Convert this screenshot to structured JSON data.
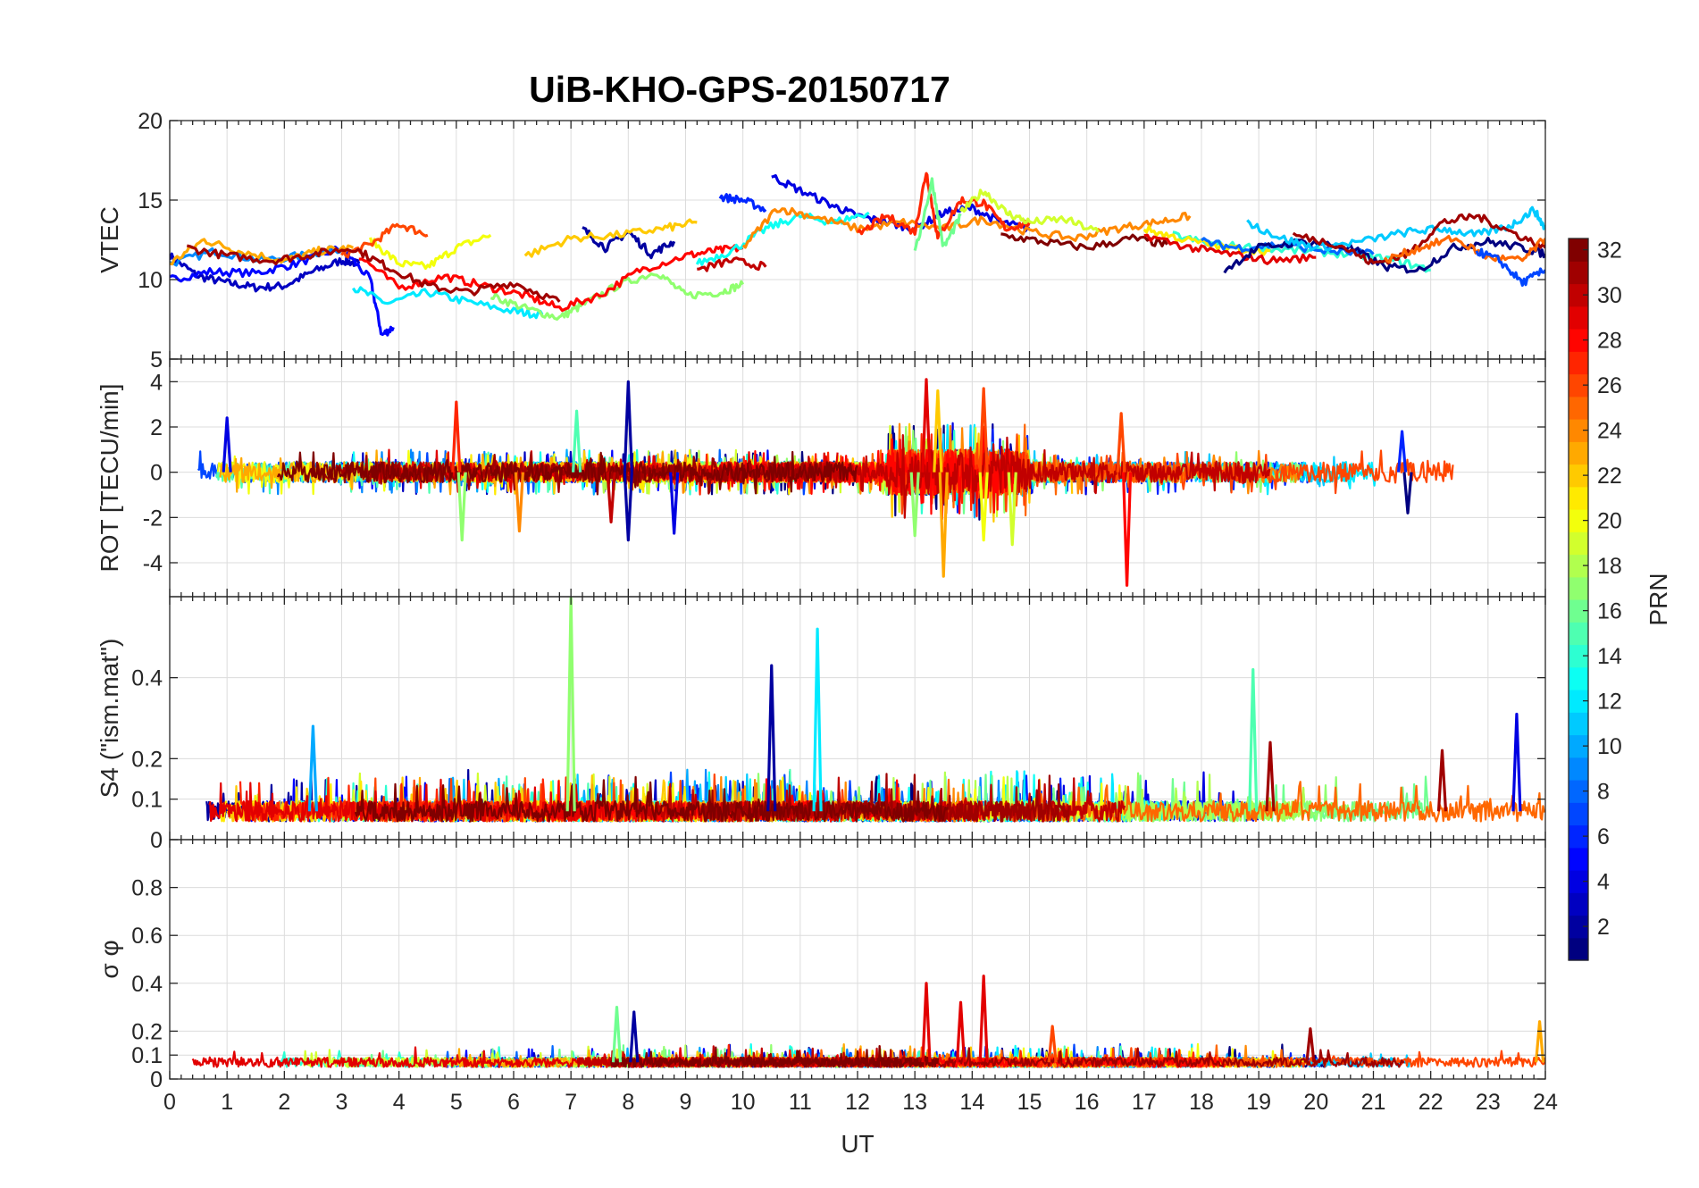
{
  "chart_data": {
    "type": "line",
    "title": "UiB-KHO-GPS-20150717",
    "xlabel": "UT",
    "xlim": [
      0,
      24
    ],
    "x_ticks": [
      "0",
      "1",
      "2",
      "3",
      "4",
      "5",
      "6",
      "7",
      "8",
      "9",
      "10",
      "11",
      "12",
      "13",
      "14",
      "15",
      "16",
      "17",
      "18",
      "19",
      "20",
      "21",
      "22",
      "23",
      "24"
    ],
    "colorbar": {
      "label": "PRN",
      "range": [
        1,
        32
      ],
      "ticks": [
        "2",
        "4",
        "6",
        "8",
        "10",
        "12",
        "14",
        "16",
        "18",
        "20",
        "22",
        "24",
        "26",
        "28",
        "30",
        "32"
      ],
      "colormap": "jet"
    },
    "panels": [
      {
        "ylabel": "VTEC",
        "ylim": [
          5,
          20
        ],
        "y_ticks": [
          "5",
          "10",
          "15",
          "20"
        ],
        "series": [
          {
            "prn": 3,
            "x": [
              0.0,
              0.5,
              1.0,
              1.5,
              2.0,
              2.5,
              3.0,
              3.3
            ],
            "y": [
              11.5,
              10.2,
              9.8,
              9.5,
              9.6,
              10.5,
              11.2,
              11.0
            ]
          },
          {
            "prn": 5,
            "x": [
              0.0,
              0.7,
              1.5,
              2.2,
              3.0,
              3.5,
              3.7,
              3.9
            ],
            "y": [
              10.0,
              10.5,
              10.4,
              11.0,
              12.0,
              10.0,
              6.5,
              7.0
            ]
          },
          {
            "prn": 9,
            "x": [
              0.0,
              0.8,
              1.6,
              2.5,
              3.0
            ],
            "y": [
              11.0,
              11.8,
              11.2,
              11.6,
              12.0
            ]
          },
          {
            "prn": 12,
            "x": [
              3.2,
              3.8,
              4.5,
              5.2,
              6.0,
              6.5
            ],
            "y": [
              9.5,
              8.5,
              9.2,
              8.6,
              8.0,
              7.8
            ]
          },
          {
            "prn": 17,
            "x": [
              5.6,
              6.2,
              6.8,
              7.2,
              7.8,
              8.5,
              9.0,
              9.6,
              10.0
            ],
            "y": [
              9.0,
              8.2,
              7.6,
              8.4,
              9.6,
              10.5,
              9.0,
              9.2,
              9.7
            ]
          },
          {
            "prn": 20,
            "x": [
              3.5,
              4.0,
              4.5,
              5.0,
              5.6
            ],
            "y": [
              12.5,
              11.0,
              10.8,
              12.0,
              12.8
            ]
          },
          {
            "prn": 23,
            "x": [
              0.0,
              0.6,
              1.2,
              2.0,
              2.6,
              3.2
            ],
            "y": [
              11.0,
              12.5,
              11.8,
              11.2,
              11.8,
              12.0
            ]
          },
          {
            "prn": 26,
            "x": [
              3.0,
              3.5,
              4.0,
              4.5
            ],
            "y": [
              11.5,
              12.2,
              13.5,
              12.8
            ]
          },
          {
            "prn": 28,
            "x": [
              3.3,
              4.0,
              4.8,
              5.5,
              6.2,
              6.8,
              7.5,
              8.2,
              9.0,
              9.5,
              10.0
            ],
            "y": [
              11.5,
              9.5,
              10.2,
              9.6,
              9.0,
              8.2,
              9.0,
              10.6,
              11.5,
              11.8,
              12.0
            ]
          },
          {
            "prn": 31,
            "x": [
              0.3,
              1.0,
              1.8,
              2.5,
              3.2,
              3.8,
              4.5,
              5.2,
              6.0,
              6.8
            ],
            "y": [
              12.0,
              11.5,
              11.2,
              11.6,
              12.0,
              10.8,
              9.6,
              9.2,
              9.8,
              8.6
            ]
          },
          {
            "prn": 2,
            "x": [
              7.2,
              7.6,
              8.0,
              8.4,
              8.8
            ],
            "y": [
              13.2,
              12.0,
              13.0,
              11.6,
              12.4
            ]
          },
          {
            "prn": 6,
            "x": [
              9.6,
              10.0,
              10.4
            ],
            "y": [
              15.2,
              15.0,
              14.4
            ]
          },
          {
            "prn": 4,
            "x": [
              10.5,
              11.0,
              11.6,
              12.0,
              12.5,
              13.0,
              13.5,
              14.0,
              14.5,
              15.0
            ],
            "y": [
              16.5,
              15.6,
              14.6,
              14.0,
              13.6,
              13.2,
              14.2,
              14.5,
              13.6,
              13.2
            ]
          },
          {
            "prn": 13,
            "x": [
              9.2,
              9.8,
              10.4,
              11.0,
              11.6,
              12.2
            ],
            "y": [
              11.0,
              11.8,
              13.2,
              14.0,
              13.6,
              14.2
            ]
          },
          {
            "prn": 22,
            "x": [
              6.2,
              7.0,
              7.8,
              8.6,
              9.2
            ],
            "y": [
              11.5,
              12.6,
              12.8,
              13.2,
              13.6
            ]
          },
          {
            "prn": 24,
            "x": [
              10.0,
              10.6,
              11.2,
              12.0,
              12.8,
              13.5,
              14.2,
              15.0,
              15.8,
              16.5,
              17.2,
              17.8
            ],
            "y": [
              12.0,
              14.5,
              14.0,
              13.2,
              13.6,
              13.2,
              13.8,
              13.0,
              12.6,
              13.2,
              13.6,
              14.0
            ]
          },
          {
            "prn": 30,
            "x": [
              9.2,
              9.8,
              10.4
            ],
            "y": [
              10.6,
              11.2,
              10.8
            ]
          },
          {
            "prn": 27,
            "x": [
              12.0,
              12.5,
              13.0,
              13.2,
              13.4,
              13.8,
              14.2,
              14.6,
              15.0
            ],
            "y": [
              12.8,
              14.0,
              13.0,
              16.8,
              12.6,
              15.0,
              14.8,
              13.2,
              13.6
            ]
          },
          {
            "prn": 16,
            "x": [
              13.0,
              13.3,
              13.5,
              13.8
            ],
            "y": [
              11.6,
              16.2,
              12.0,
              14.0
            ]
          },
          {
            "prn": 19,
            "x": [
              13.8,
              14.2,
              14.6,
              15.0,
              15.6,
              16.2
            ],
            "y": [
              14.2,
              15.6,
              14.2,
              13.6,
              13.8,
              13.0
            ]
          },
          {
            "prn": 32,
            "x": [
              14.5,
              15.2,
              16.0,
              16.8,
              17.4
            ],
            "y": [
              12.8,
              12.4,
              12.0,
              12.6,
              12.2
            ]
          },
          {
            "prn": 14,
            "x": [
              17.5,
              18.2,
              19.0,
              19.8,
              20.6,
              21.4,
              22.0
            ],
            "y": [
              12.8,
              12.2,
              12.0,
              11.8,
              11.6,
              11.2,
              10.6
            ]
          },
          {
            "prn": 21,
            "x": [
              17.0,
              17.6,
              18.4,
              19.2
            ],
            "y": [
              13.2,
              12.6,
              12.0,
              11.8
            ]
          },
          {
            "prn": 8,
            "x": [
              18.0,
              18.6,
              19.4,
              20.2,
              21.0
            ],
            "y": [
              12.4,
              12.0,
              12.2,
              11.8,
              11.6
            ]
          },
          {
            "prn": 29,
            "x": [
              17.0,
              17.8,
              18.5,
              19.2,
              20.0
            ],
            "y": [
              12.8,
              12.0,
              11.6,
              11.2,
              11.4
            ]
          },
          {
            "prn": 1,
            "x": [
              18.4,
              19.0,
              19.8,
              20.6,
              21.2,
              21.8,
              22.4,
              23.0,
              23.6,
              24.0
            ],
            "y": [
              10.6,
              12.0,
              12.4,
              12.0,
              10.8,
              10.6,
              12.0,
              12.4,
              12.0,
              11.6
            ]
          },
          {
            "prn": 11,
            "x": [
              18.8,
              19.4,
              20.0,
              20.8,
              21.6,
              22.2,
              22.8,
              23.4,
              23.8,
              24.0
            ],
            "y": [
              13.6,
              12.6,
              12.0,
              12.4,
              13.0,
              13.2,
              12.8,
              13.4,
              14.4,
              13.2
            ]
          },
          {
            "prn": 31,
            "x": [
              19.6,
              20.4,
              21.0,
              21.6,
              22.2,
              22.8,
              23.4,
              24.0
            ],
            "y": [
              12.8,
              12.2,
              11.0,
              11.6,
              13.6,
              14.0,
              13.0,
              12.0
            ]
          },
          {
            "prn": 25,
            "x": [
              21.2,
              21.8,
              22.4,
              23.0,
              23.6,
              24.0
            ],
            "y": [
              11.2,
              12.0,
              12.6,
              11.4,
              11.2,
              12.6
            ]
          },
          {
            "prn": 7,
            "x": [
              22.8,
              23.2,
              23.6,
              24.0
            ],
            "y": [
              11.8,
              11.2,
              9.8,
              10.6
            ]
          }
        ]
      },
      {
        "ylabel": "ROT [TECU/min]",
        "ylim": [
          -5.5,
          5
        ],
        "y_ticks": [
          "-4",
          "-2",
          "0",
          "2",
          "4"
        ],
        "spikes": [
          {
            "prn": 4,
            "x": 1.0,
            "y": 2.4
          },
          {
            "prn": 27,
            "x": 5.0,
            "y": 3.1
          },
          {
            "prn": 17,
            "x": 5.1,
            "y": -3.0
          },
          {
            "prn": 24,
            "x": 6.1,
            "y": -2.6
          },
          {
            "prn": 15,
            "x": 7.1,
            "y": 2.7
          },
          {
            "prn": 2,
            "x": 8.0,
            "y": 4.0
          },
          {
            "prn": 2,
            "x": 8.0,
            "y": -3.0
          },
          {
            "prn": 4,
            "x": 8.8,
            "y": -2.7
          },
          {
            "prn": 30,
            "x": 7.7,
            "y": -2.2
          },
          {
            "prn": 29,
            "x": 13.2,
            "y": 4.1
          },
          {
            "prn": 22,
            "x": 13.4,
            "y": 3.6
          },
          {
            "prn": 23,
            "x": 13.5,
            "y": -4.6
          },
          {
            "prn": 17,
            "x": 13.0,
            "y": -2.8
          },
          {
            "prn": 26,
            "x": 14.2,
            "y": 3.7
          },
          {
            "prn": 20,
            "x": 14.2,
            "y": -3.0
          },
          {
            "prn": 19,
            "x": 14.7,
            "y": -3.2
          },
          {
            "prn": 28,
            "x": 16.7,
            "y": -5.0
          },
          {
            "prn": 26,
            "x": 16.6,
            "y": 2.6
          },
          {
            "prn": 6,
            "x": 21.5,
            "y": 1.8
          },
          {
            "prn": 1,
            "x": 21.6,
            "y": -1.8
          }
        ]
      },
      {
        "ylabel": "S4 (\"ism.mat\")",
        "ylim": [
          0,
          0.6
        ],
        "y_ticks": [
          "0",
          "0.1",
          "0.2",
          "0.4"
        ],
        "spikes": [
          {
            "prn": 10,
            "x": 2.5,
            "y": 0.28
          },
          {
            "prn": 17,
            "x": 7.0,
            "y": 0.6
          },
          {
            "prn": 2,
            "x": 10.5,
            "y": 0.43
          },
          {
            "prn": 12,
            "x": 11.3,
            "y": 0.52
          },
          {
            "prn": 15,
            "x": 18.9,
            "y": 0.42
          },
          {
            "prn": 31,
            "x": 19.2,
            "y": 0.24
          },
          {
            "prn": 31,
            "x": 22.2,
            "y": 0.22
          },
          {
            "prn": 4,
            "x": 23.5,
            "y": 0.31
          }
        ],
        "baseline": 0.07
      },
      {
        "ylabel": "σ φ",
        "ylim": [
          0,
          1
        ],
        "y_ticks": [
          "0",
          "0.1",
          "0.2",
          "0.4",
          "0.6",
          "0.8"
        ],
        "spikes": [
          {
            "prn": 16,
            "x": 7.8,
            "y": 0.3
          },
          {
            "prn": 2,
            "x": 8.1,
            "y": 0.28
          },
          {
            "prn": 29,
            "x": 13.2,
            "y": 0.4
          },
          {
            "prn": 29,
            "x": 13.8,
            "y": 0.32
          },
          {
            "prn": 29,
            "x": 14.2,
            "y": 0.43
          },
          {
            "prn": 26,
            "x": 15.4,
            "y": 0.22
          },
          {
            "prn": 31,
            "x": 19.9,
            "y": 0.21
          },
          {
            "prn": 23,
            "x": 23.9,
            "y": 0.24
          }
        ],
        "baseline": 0.07
      }
    ]
  }
}
